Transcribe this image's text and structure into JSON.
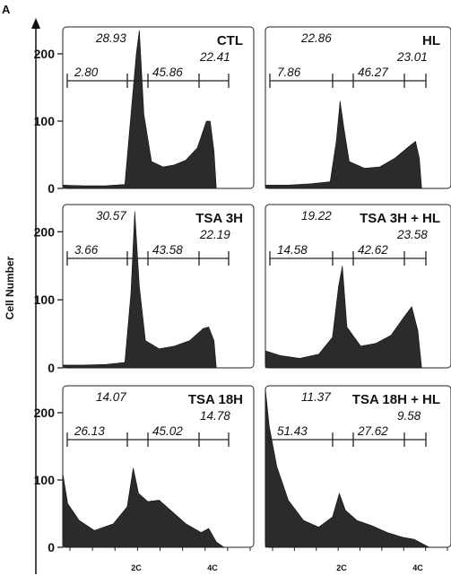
{
  "figure_letter": "A",
  "chart_data": {
    "type": "area",
    "ylabel": "Cell Number",
    "ylim": [
      0,
      240
    ],
    "y_ticks": [
      0,
      100,
      200
    ],
    "x_ticks": [
      "2C",
      "4C"
    ],
    "fill_color": "#2b2b2b",
    "panels": [
      {
        "title": "CTL",
        "gate_percents": [
          "2.80",
          "28.93",
          "45.86",
          "22.41"
        ],
        "histogram": [
          {
            "x": 0,
            "y": 5
          },
          {
            "x": 0.3,
            "y": 4
          },
          {
            "x": 0.6,
            "y": 4
          },
          {
            "x": 0.85,
            "y": 6
          },
          {
            "x": 1.0,
            "y": 200
          },
          {
            "x": 1.04,
            "y": 235
          },
          {
            "x": 1.1,
            "y": 110
          },
          {
            "x": 1.2,
            "y": 40
          },
          {
            "x": 1.35,
            "y": 32
          },
          {
            "x": 1.5,
            "y": 35
          },
          {
            "x": 1.65,
            "y": 42
          },
          {
            "x": 1.8,
            "y": 60
          },
          {
            "x": 1.92,
            "y": 100
          },
          {
            "x": 1.97,
            "y": 100
          },
          {
            "x": 2.02,
            "y": 55
          },
          {
            "x": 2.05,
            "y": 0
          }
        ]
      },
      {
        "title": "HL",
        "gate_percents": [
          "7.86",
          "22.86",
          "46.27",
          "23.01"
        ],
        "histogram": [
          {
            "x": 0,
            "y": 5
          },
          {
            "x": 0.3,
            "y": 5
          },
          {
            "x": 0.6,
            "y": 7
          },
          {
            "x": 0.85,
            "y": 10
          },
          {
            "x": 0.93,
            "y": 70
          },
          {
            "x": 0.98,
            "y": 130
          },
          {
            "x": 1.03,
            "y": 90
          },
          {
            "x": 1.1,
            "y": 40
          },
          {
            "x": 1.3,
            "y": 30
          },
          {
            "x": 1.5,
            "y": 32
          },
          {
            "x": 1.7,
            "y": 45
          },
          {
            "x": 1.88,
            "y": 62
          },
          {
            "x": 1.97,
            "y": 70
          },
          {
            "x": 2.02,
            "y": 45
          },
          {
            "x": 2.05,
            "y": 0
          }
        ]
      },
      {
        "title": "TSA 3H",
        "gate_percents": [
          "3.66",
          "30.57",
          "43.58",
          "22.19"
        ],
        "histogram": [
          {
            "x": 0,
            "y": 4
          },
          {
            "x": 0.3,
            "y": 4
          },
          {
            "x": 0.6,
            "y": 5
          },
          {
            "x": 0.85,
            "y": 8
          },
          {
            "x": 0.93,
            "y": 110
          },
          {
            "x": 0.98,
            "y": 230
          },
          {
            "x": 1.04,
            "y": 120
          },
          {
            "x": 1.12,
            "y": 40
          },
          {
            "x": 1.3,
            "y": 28
          },
          {
            "x": 1.5,
            "y": 32
          },
          {
            "x": 1.7,
            "y": 40
          },
          {
            "x": 1.88,
            "y": 58
          },
          {
            "x": 1.95,
            "y": 60
          },
          {
            "x": 2.02,
            "y": 40
          },
          {
            "x": 2.05,
            "y": 0
          }
        ]
      },
      {
        "title": "TSA 3H + HL",
        "gate_percents": [
          "14.58",
          "19.22",
          "42.62",
          "23.58"
        ],
        "histogram": [
          {
            "x": 0,
            "y": 25
          },
          {
            "x": 0.2,
            "y": 18
          },
          {
            "x": 0.45,
            "y": 14
          },
          {
            "x": 0.7,
            "y": 20
          },
          {
            "x": 0.88,
            "y": 45
          },
          {
            "x": 0.96,
            "y": 120
          },
          {
            "x": 1.01,
            "y": 150
          },
          {
            "x": 1.07,
            "y": 60
          },
          {
            "x": 1.25,
            "y": 32
          },
          {
            "x": 1.45,
            "y": 36
          },
          {
            "x": 1.65,
            "y": 48
          },
          {
            "x": 1.82,
            "y": 75
          },
          {
            "x": 1.92,
            "y": 90
          },
          {
            "x": 2.0,
            "y": 55
          },
          {
            "x": 2.05,
            "y": 0
          }
        ]
      },
      {
        "title": "TSA 18H",
        "gate_percents": [
          "26.13",
          "14.07",
          "45.02",
          "14.78"
        ],
        "histogram": [
          {
            "x": 0,
            "y": 110
          },
          {
            "x": 0.1,
            "y": 65
          },
          {
            "x": 0.25,
            "y": 40
          },
          {
            "x": 0.45,
            "y": 25
          },
          {
            "x": 0.7,
            "y": 35
          },
          {
            "x": 0.88,
            "y": 60
          },
          {
            "x": 0.96,
            "y": 118
          },
          {
            "x": 1.03,
            "y": 80
          },
          {
            "x": 1.15,
            "y": 68
          },
          {
            "x": 1.3,
            "y": 70
          },
          {
            "x": 1.45,
            "y": 55
          },
          {
            "x": 1.65,
            "y": 35
          },
          {
            "x": 1.85,
            "y": 22
          },
          {
            "x": 1.95,
            "y": 28
          },
          {
            "x": 2.05,
            "y": 8
          },
          {
            "x": 2.15,
            "y": 0
          }
        ]
      },
      {
        "title": "TSA 18H + HL",
        "gate_percents": [
          "51.43",
          "11.37",
          "27.62",
          "9.58"
        ],
        "histogram": [
          {
            "x": 0,
            "y": 235
          },
          {
            "x": 0.05,
            "y": 180
          },
          {
            "x": 0.15,
            "y": 120
          },
          {
            "x": 0.3,
            "y": 70
          },
          {
            "x": 0.5,
            "y": 40
          },
          {
            "x": 0.7,
            "y": 30
          },
          {
            "x": 0.88,
            "y": 45
          },
          {
            "x": 0.97,
            "y": 80
          },
          {
            "x": 1.05,
            "y": 55
          },
          {
            "x": 1.2,
            "y": 40
          },
          {
            "x": 1.4,
            "y": 32
          },
          {
            "x": 1.6,
            "y": 22
          },
          {
            "x": 1.8,
            "y": 15
          },
          {
            "x": 1.95,
            "y": 12
          },
          {
            "x": 2.05,
            "y": 6
          },
          {
            "x": 2.15,
            "y": 0
          }
        ]
      }
    ]
  }
}
